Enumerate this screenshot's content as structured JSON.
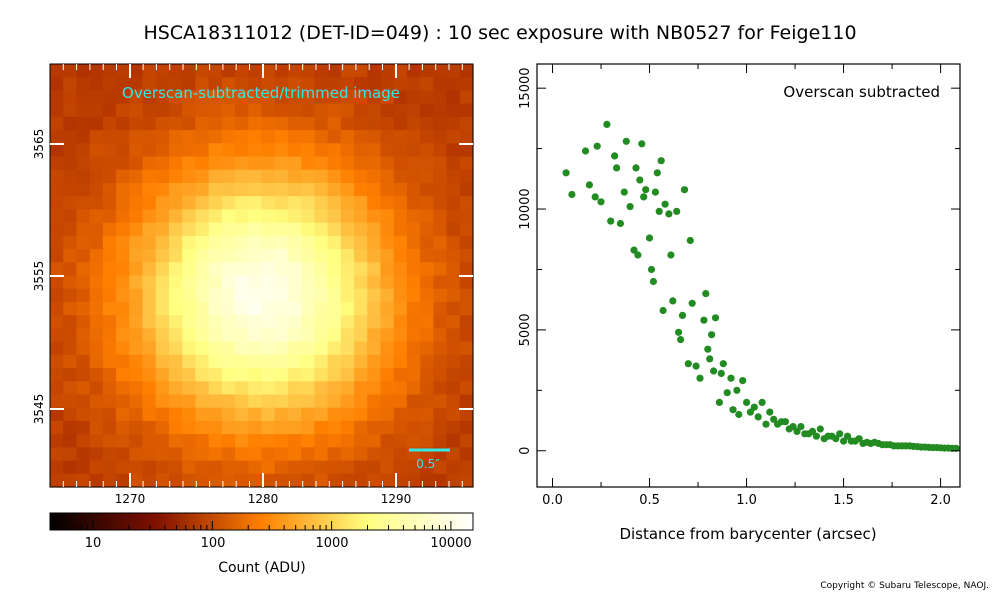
{
  "title": "HSCA18311012 (DET-ID=049) :  10 sec exposure with NB0527 for Feige110",
  "copyright": "Copyright © Subaru Telescope, NAOJ.",
  "image_panel": {
    "label": "Overscan-subtracted/trimmed image",
    "label_color": "#33e8e8",
    "scale_bar_label": "0.5″",
    "x_ticks": [
      "1270",
      "1280",
      "1290"
    ],
    "y_ticks": [
      "3545",
      "3555",
      "3565"
    ],
    "colorbar": {
      "label": "Count (ADU)",
      "ticks": [
        "10",
        "100",
        "1000",
        "10000"
      ],
      "colormap": "afmhot",
      "scale": "log"
    }
  },
  "chart_data": {
    "type": "scatter",
    "annotation": "Overscan subtracted",
    "xlabel": "Distance from barycenter (arcsec)",
    "ylabel": "",
    "xlim": [
      -0.08,
      2.1
    ],
    "ylim": [
      -1500,
      16000
    ],
    "x_ticks": [
      "0.0",
      "0.5",
      "1.0",
      "1.5",
      "2.0"
    ],
    "y_ticks": [
      "0",
      "5000",
      "10000",
      "15000"
    ],
    "grid": false,
    "marker_color": "#228b22",
    "series": [
      {
        "x": [
          0.07,
          0.1,
          0.17,
          0.19,
          0.22,
          0.23,
          0.25,
          0.28,
          0.3,
          0.32,
          0.33,
          0.35,
          0.37,
          0.38,
          0.4,
          0.42,
          0.43,
          0.44,
          0.45,
          0.46,
          0.47,
          0.48,
          0.5,
          0.51,
          0.52,
          0.53,
          0.54,
          0.55,
          0.56,
          0.57,
          0.58,
          0.6,
          0.61,
          0.62,
          0.64,
          0.65,
          0.66,
          0.67,
          0.68,
          0.7,
          0.71,
          0.72,
          0.74,
          0.76,
          0.78,
          0.79,
          0.8,
          0.81,
          0.82,
          0.83,
          0.84,
          0.86,
          0.87,
          0.88,
          0.9,
          0.92,
          0.93,
          0.95,
          0.96,
          0.98,
          1.0,
          1.02,
          1.04,
          1.06,
          1.08,
          1.1,
          1.12,
          1.14,
          1.16,
          1.18,
          1.2,
          1.22,
          1.24,
          1.26,
          1.28,
          1.3,
          1.32,
          1.34,
          1.36,
          1.38,
          1.4,
          1.42,
          1.44,
          1.46,
          1.48,
          1.5,
          1.52,
          1.54,
          1.56,
          1.58,
          1.6,
          1.62,
          1.64,
          1.66,
          1.68,
          1.7,
          1.72,
          1.74,
          1.76,
          1.78,
          1.8,
          1.82,
          1.84,
          1.86,
          1.88,
          1.9,
          1.92,
          1.94,
          1.96,
          1.98,
          2.0,
          2.02,
          2.04,
          2.06,
          2.08
        ],
        "y": [
          11500,
          10600,
          12400,
          11000,
          10500,
          12600,
          10300,
          13500,
          9500,
          12200,
          11700,
          9400,
          10700,
          12800,
          10100,
          8300,
          11700,
          8100,
          11200,
          12700,
          10500,
          10800,
          8800,
          7500,
          7000,
          10700,
          11500,
          9900,
          12000,
          5800,
          10200,
          9800,
          8100,
          6200,
          9900,
          4900,
          4600,
          5600,
          10800,
          3600,
          8700,
          6100,
          3500,
          3000,
          5400,
          6500,
          4200,
          3800,
          4800,
          3300,
          5500,
          2000,
          3200,
          3600,
          2400,
          3000,
          1700,
          2500,
          1500,
          2900,
          2000,
          1600,
          1800,
          1400,
          2000,
          1100,
          1600,
          1300,
          1100,
          1200,
          1200,
          900,
          1000,
          800,
          1000,
          700,
          700,
          800,
          600,
          900,
          500,
          600,
          600,
          500,
          700,
          400,
          600,
          400,
          400,
          500,
          300,
          350,
          300,
          350,
          300,
          250,
          250,
          250,
          200,
          200,
          200,
          200,
          200,
          180,
          170,
          150,
          150,
          140,
          130,
          130,
          120,
          110,
          110,
          100,
          100
        ]
      }
    ]
  }
}
